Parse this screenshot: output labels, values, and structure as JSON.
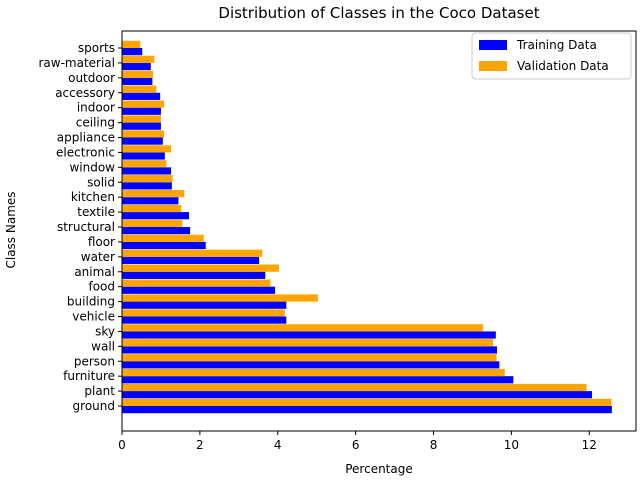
{
  "chart_data": {
    "type": "bar",
    "orientation": "horizontal",
    "title": "Distribution of Classes in the Coco Dataset",
    "xlabel": "Percentage",
    "ylabel": "Class Names",
    "xlim": [
      0,
      13.2
    ],
    "xticks": [
      0,
      2,
      4,
      6,
      8,
      10,
      12
    ],
    "grid": false,
    "legend_position": "top-right",
    "categories": [
      "ground",
      "plant",
      "furniture",
      "person",
      "wall",
      "sky",
      "vehicle",
      "building",
      "food",
      "animal",
      "water",
      "floor",
      "structural",
      "textile",
      "kitchen",
      "solid",
      "window",
      "electronic",
      "appliance",
      "ceiling",
      "indoor",
      "accessory",
      "outdoor",
      "raw-material",
      "sports"
    ],
    "series": [
      {
        "name": "Training Data",
        "color": "#0000ff",
        "values": [
          12.58,
          12.07,
          10.05,
          9.69,
          9.63,
          9.6,
          4.22,
          4.22,
          3.93,
          3.68,
          3.52,
          2.15,
          1.75,
          1.72,
          1.45,
          1.28,
          1.26,
          1.1,
          1.05,
          1.0,
          1.0,
          0.98,
          0.78,
          0.74,
          0.52
        ]
      },
      {
        "name": "Validation Data",
        "color": "#ffa500",
        "values": [
          12.57,
          11.93,
          9.83,
          9.62,
          9.53,
          9.27,
          4.18,
          5.03,
          3.81,
          4.03,
          3.6,
          2.1,
          1.55,
          1.52,
          1.6,
          1.3,
          1.14,
          1.26,
          1.08,
          1.0,
          1.08,
          0.88,
          0.8,
          0.83,
          0.47
        ]
      }
    ]
  }
}
